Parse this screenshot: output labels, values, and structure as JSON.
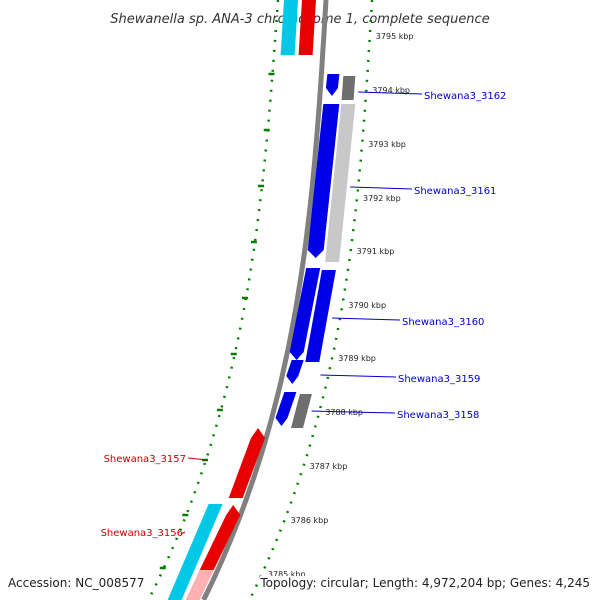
{
  "title": "Shewanella sp. ANA-3 chromosome 1, complete sequence",
  "footer": {
    "accession": "Accession: NC_008577",
    "topology": "Topology: circular; Length: 4,972,204 bp; Genes: 4,245"
  },
  "colors": {
    "forward_cds": "#0000e6",
    "reverse_cds": "#e60000",
    "forward_gene": "#6e6e6e",
    "reverse_gene": "#00c8e6",
    "backbone": "#808080",
    "gc_skew": "#008000",
    "forward_label": "#0000cc",
    "reverse_label": "#cc0000"
  },
  "ticks": [
    "3795 kbp",
    "3794 kbp",
    "3793 kbp",
    "3792 kbp",
    "3791 kbp",
    "3790 kbp",
    "3789 kbp",
    "3788 kbp",
    "3787 kbp",
    "3786 kbp",
    "3785 kbp"
  ],
  "gene_labels": [
    {
      "text": "Shewana3_3162",
      "strand": "forward"
    },
    {
      "text": "Shewana3_3161",
      "strand": "forward"
    },
    {
      "text": "Shewana3_3160",
      "strand": "forward"
    },
    {
      "text": "Shewana3_3159",
      "strand": "forward"
    },
    {
      "text": "Shewana3_3158",
      "strand": "forward"
    },
    {
      "text": "Shewana3_3157",
      "strand": "reverse"
    },
    {
      "text": "Shewana3_3156",
      "strand": "reverse"
    }
  ]
}
